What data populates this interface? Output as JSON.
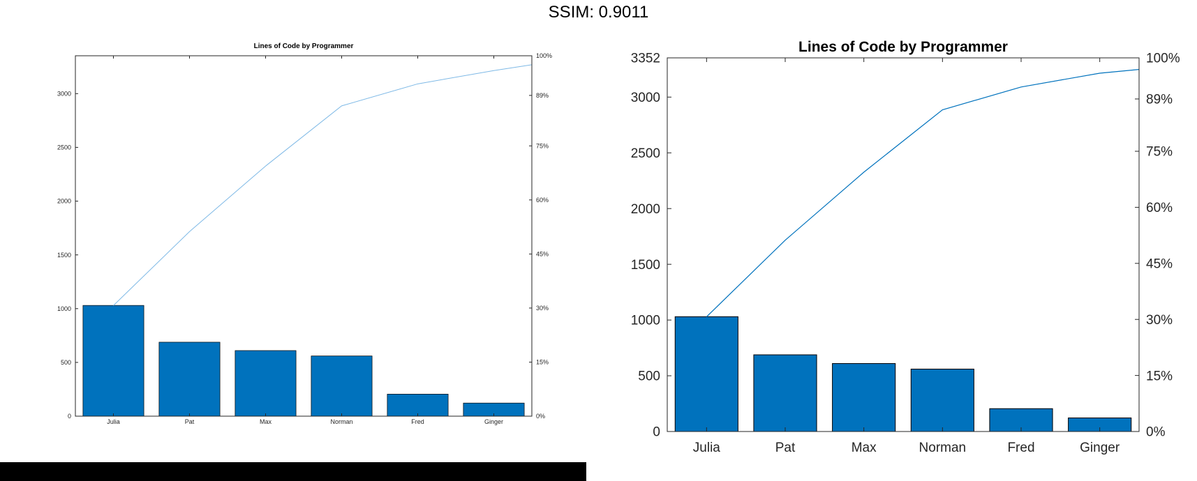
{
  "header": {
    "ssim_label": "SSIM: 0.9011"
  },
  "colors": {
    "bar": "#0072BD",
    "line": "#0072BD",
    "line_left": "#7EB9E6",
    "axis": "#262626"
  },
  "chart_data": [
    {
      "type": "bar",
      "title": "Lines of Code by Programmer",
      "categories": [
        "Julia",
        "Pat",
        "Max",
        "Norman",
        "Fred",
        "Ginger"
      ],
      "values": [
        1030,
        688,
        610,
        560,
        205,
        122
      ],
      "cumulative_pct": [
        30.7,
        51.2,
        69.4,
        86.1,
        92.2,
        95.9
      ],
      "ylim": [
        0,
        3352
      ],
      "yticks": [
        "0",
        "500",
        "1000",
        "1500",
        "2000",
        "2500",
        "3000"
      ],
      "y2ticks": [
        "0%",
        "15%",
        "30%",
        "45%",
        "60%",
        "75%",
        "89%",
        "100%"
      ]
    },
    {
      "type": "bar",
      "title": "Lines of Code by Programmer",
      "categories": [
        "Julia",
        "Pat",
        "Max",
        "Norman",
        "Fred",
        "Ginger"
      ],
      "values": [
        1030,
        688,
        610,
        560,
        205,
        122
      ],
      "cumulative_pct": [
        30.7,
        51.2,
        69.4,
        86.1,
        92.2,
        95.9
      ],
      "ylim": [
        0,
        3352
      ],
      "yticks": [
        "0",
        "500",
        "1000",
        "1500",
        "2000",
        "2500",
        "3000",
        "3352"
      ],
      "y2ticks": [
        "0%",
        "15%",
        "30%",
        "45%",
        "60%",
        "75%",
        "89%",
        "100%"
      ]
    }
  ]
}
